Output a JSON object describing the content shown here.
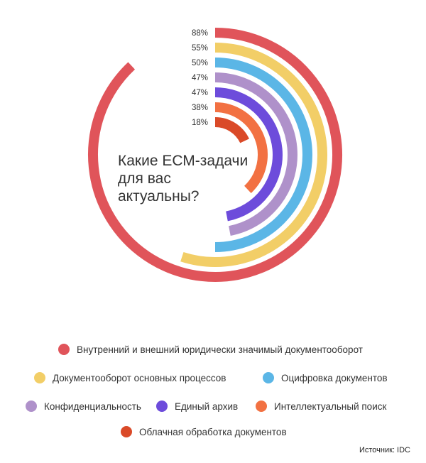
{
  "chart_data": {
    "type": "radial-bar",
    "title": "Какие ЕСМ-задачи для вас актуальны?",
    "unit": "%",
    "series": [
      {
        "name": "Внутренний и внешний юридически значимый документооборот",
        "value": 88,
        "label": "88%",
        "color": "#E0545A"
      },
      {
        "name": "Документооборот основных процессов",
        "value": 55,
        "label": "55%",
        "color": "#F2CE67"
      },
      {
        "name": "Оцифровка документов",
        "value": 50,
        "label": "50%",
        "color": "#5BB6E6"
      },
      {
        "name": "Конфиденциальность",
        "value": 47,
        "label": "47%",
        "color": "#AF91CA"
      },
      {
        "name": "Единый архив",
        "value": 47,
        "label": "47%",
        "color": "#6D4CDB"
      },
      {
        "name": "Интеллектуальный поиск",
        "value": 38,
        "label": "38%",
        "color": "#F27142"
      },
      {
        "name": "Облачная обработка документов",
        "value": 18,
        "label": "18%",
        "color": "#DA4A28"
      }
    ],
    "legend_position": "bottom",
    "source": "Источник: IDC"
  }
}
